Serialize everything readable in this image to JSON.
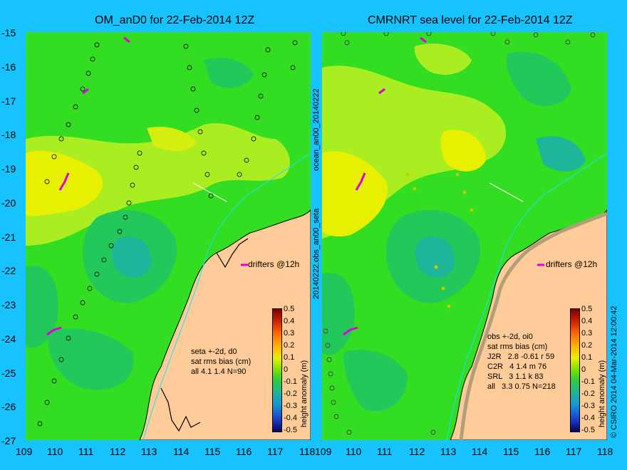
{
  "left_panel": {
    "title": "OM_anD0 for 22-Feb-2014 12Z",
    "info": "seta +-2d, d0\nsat rms bias (cm)\nall 4.1 1.4 N=90",
    "drifters": "drifters @12h"
  },
  "right_panel": {
    "title": "CMRNRT sea level  for 22-Feb-2014 12Z",
    "info": "obs +-2d, oi0\nsat rms bias (cm)\nJ2R   2.8 -0.61 r 59\nC2R   4 1.4 m 76\nSRL   3 1.1 k 83\nall   3.3 0.75 N=218",
    "drifters": "drifters @12h"
  },
  "side_labels": {
    "left_vertical_top": "ocean_an00_20140222",
    "left_vertical_bottom": "20140222.obs_an00_seta",
    "right_vertical": "© CSIRO 2014   04-Mar-2014 12:00:42"
  },
  "axes": {
    "y_ticks": [
      "-15",
      "-16",
      "-17",
      "-18",
      "-19",
      "-20",
      "-21",
      "-22",
      "-23",
      "-24",
      "-25",
      "-26",
      "-27"
    ],
    "x_ticks": [
      "109",
      "110",
      "111",
      "112",
      "113",
      "114",
      "115",
      "116",
      "117",
      "118"
    ],
    "lat_range": [
      -27,
      -15
    ],
    "lon_range": [
      109,
      118
    ]
  },
  "colorbar": {
    "label": "height anomaly (m)",
    "ticks": [
      "0.5",
      "0.4",
      "0.3",
      "0.2",
      "0.1",
      "0",
      "-0.1",
      "-0.2",
      "-0.3",
      "-0.4",
      "-0.5"
    ],
    "range": [
      -0.5,
      0.5
    ]
  },
  "colors": {
    "background": "#16c3ff",
    "land": "#ffcc99",
    "ocean_base": "#33dd22",
    "drifter": "#e000e0"
  }
}
